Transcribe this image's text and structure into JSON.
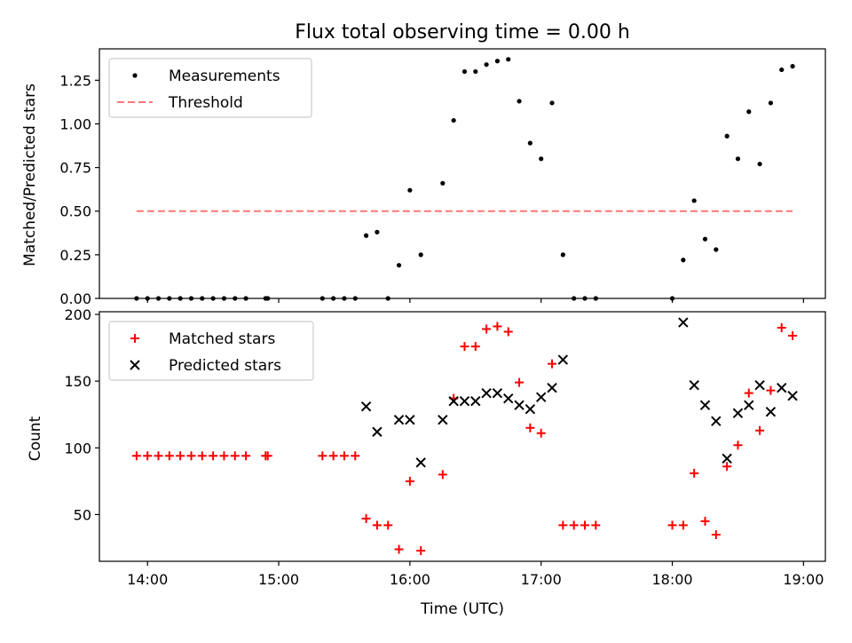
{
  "chart_data": [
    {
      "type": "scatter",
      "title": "Flux total observing time = 0.00 h",
      "xlabel": "",
      "ylabel": "Matched/Predicted stars",
      "xlim": [
        "13:38",
        "19:10"
      ],
      "ylim": [
        0,
        1.43
      ],
      "yticks": [
        "0.00",
        "0.25",
        "0.50",
        "0.75",
        "1.00",
        "1.25"
      ],
      "grid": false,
      "legend": "top-left",
      "series": [
        {
          "name": "Measurements",
          "color": "#000000",
          "marker": "point",
          "points": [
            [
              "13:55",
              0.0
            ],
            [
              "14:00",
              0.0
            ],
            [
              "14:05",
              0.0
            ],
            [
              "14:10",
              0.0
            ],
            [
              "14:15",
              0.0
            ],
            [
              "14:20",
              0.0
            ],
            [
              "14:25",
              0.0
            ],
            [
              "14:30",
              0.0
            ],
            [
              "14:35",
              0.0
            ],
            [
              "14:40",
              0.0
            ],
            [
              "14:45",
              0.0
            ],
            [
              "14:54",
              0.0
            ],
            [
              "14:55",
              0.0
            ],
            [
              "15:20",
              0.0
            ],
            [
              "15:25",
              0.0
            ],
            [
              "15:30",
              0.0
            ],
            [
              "15:35",
              0.0
            ],
            [
              "15:40",
              0.36
            ],
            [
              "15:45",
              0.38
            ],
            [
              "15:50",
              0.0
            ],
            [
              "15:55",
              0.19
            ],
            [
              "16:00",
              0.62
            ],
            [
              "16:05",
              0.25
            ],
            [
              "16:15",
              0.66
            ],
            [
              "16:20",
              1.02
            ],
            [
              "16:25",
              1.3
            ],
            [
              "16:30",
              1.3
            ],
            [
              "16:35",
              1.34
            ],
            [
              "16:40",
              1.36
            ],
            [
              "16:45",
              1.37
            ],
            [
              "16:50",
              1.13
            ],
            [
              "16:55",
              0.89
            ],
            [
              "17:00",
              0.8
            ],
            [
              "17:05",
              1.12
            ],
            [
              "17:10",
              0.25
            ],
            [
              "17:15",
              0.0
            ],
            [
              "17:20",
              0.0
            ],
            [
              "17:25",
              0.0
            ],
            [
              "18:00",
              0.0
            ],
            [
              "18:05",
              0.22
            ],
            [
              "18:10",
              0.56
            ],
            [
              "18:15",
              0.34
            ],
            [
              "18:20",
              0.28
            ],
            [
              "18:25",
              0.93
            ],
            [
              "18:30",
              0.8
            ],
            [
              "18:35",
              1.07
            ],
            [
              "18:40",
              0.77
            ],
            [
              "18:45",
              1.12
            ],
            [
              "18:50",
              1.31
            ],
            [
              "18:55",
              1.33
            ]
          ]
        },
        {
          "name": "Threshold",
          "color": "#ff7777",
          "style": "dashed",
          "points": [
            [
              "13:55",
              0.5
            ],
            [
              "18:55",
              0.5
            ]
          ]
        }
      ]
    },
    {
      "type": "scatter",
      "title": "",
      "xlabel": "Time (UTC)",
      "ylabel": "Count",
      "xlim": [
        "13:38",
        "19:10"
      ],
      "ylim": [
        15,
        202
      ],
      "xticks": [
        "14:00",
        "15:00",
        "16:00",
        "17:00",
        "18:00",
        "19:00"
      ],
      "yticks": [
        "50",
        "100",
        "150",
        "200"
      ],
      "grid": false,
      "legend": "top-left",
      "series": [
        {
          "name": "Matched stars",
          "color": "#ff0000",
          "marker": "plus",
          "points": [
            [
              "13:55",
              94
            ],
            [
              "14:00",
              94
            ],
            [
              "14:05",
              94
            ],
            [
              "14:10",
              94
            ],
            [
              "14:15",
              94
            ],
            [
              "14:20",
              94
            ],
            [
              "14:25",
              94
            ],
            [
              "14:30",
              94
            ],
            [
              "14:35",
              94
            ],
            [
              "14:40",
              94
            ],
            [
              "14:45",
              94
            ],
            [
              "14:54",
              94
            ],
            [
              "14:55",
              94
            ],
            [
              "15:20",
              94
            ],
            [
              "15:25",
              94
            ],
            [
              "15:30",
              94
            ],
            [
              "15:35",
              94
            ],
            [
              "15:40",
              47
            ],
            [
              "15:45",
              42
            ],
            [
              "15:50",
              42
            ],
            [
              "15:55",
              24
            ],
            [
              "16:00",
              75
            ],
            [
              "16:05",
              23
            ],
            [
              "16:15",
              80
            ],
            [
              "16:20",
              137
            ],
            [
              "16:25",
              176
            ],
            [
              "16:30",
              176
            ],
            [
              "16:35",
              189
            ],
            [
              "16:40",
              191
            ],
            [
              "16:45",
              187
            ],
            [
              "16:50",
              149
            ],
            [
              "16:55",
              115
            ],
            [
              "17:00",
              111
            ],
            [
              "17:05",
              163
            ],
            [
              "17:10",
              42
            ],
            [
              "17:15",
              42
            ],
            [
              "17:20",
              42
            ],
            [
              "17:25",
              42
            ],
            [
              "18:00",
              42
            ],
            [
              "18:05",
              42
            ],
            [
              "18:10",
              81
            ],
            [
              "18:15",
              45
            ],
            [
              "18:20",
              35
            ],
            [
              "18:25",
              86
            ],
            [
              "18:30",
              102
            ],
            [
              "18:35",
              141
            ],
            [
              "18:40",
              113
            ],
            [
              "18:45",
              143
            ],
            [
              "18:50",
              190
            ],
            [
              "18:55",
              184
            ]
          ]
        },
        {
          "name": "Predicted stars",
          "color": "#000000",
          "marker": "x",
          "points": [
            [
              "15:40",
              131
            ],
            [
              "15:45",
              112
            ],
            [
              "15:55",
              121
            ],
            [
              "16:00",
              121
            ],
            [
              "16:05",
              89
            ],
            [
              "16:15",
              121
            ],
            [
              "16:20",
              135
            ],
            [
              "16:25",
              135
            ],
            [
              "16:30",
              135
            ],
            [
              "16:35",
              141
            ],
            [
              "16:40",
              141
            ],
            [
              "16:45",
              137
            ],
            [
              "16:50",
              132
            ],
            [
              "16:55",
              129
            ],
            [
              "17:00",
              138
            ],
            [
              "17:05",
              145
            ],
            [
              "17:10",
              166
            ],
            [
              "18:05",
              194
            ],
            [
              "18:10",
              147
            ],
            [
              "18:15",
              132
            ],
            [
              "18:20",
              120
            ],
            [
              "18:25",
              92
            ],
            [
              "18:30",
              126
            ],
            [
              "18:35",
              132
            ],
            [
              "18:40",
              147
            ],
            [
              "18:45",
              127
            ],
            [
              "18:50",
              145
            ],
            [
              "18:55",
              139
            ]
          ]
        }
      ]
    }
  ]
}
